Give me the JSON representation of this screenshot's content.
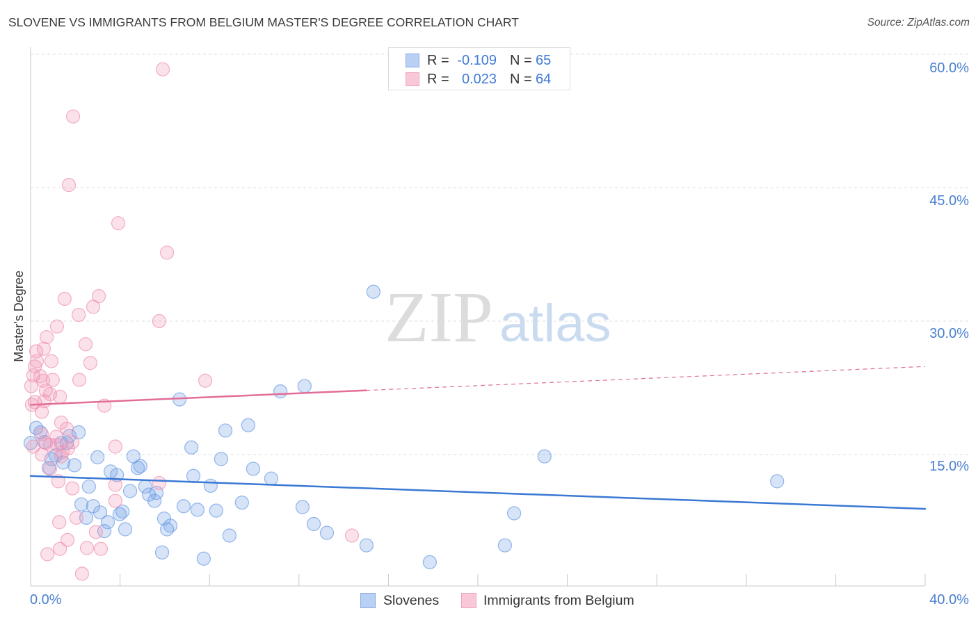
{
  "chart_data": {
    "type": "scatter",
    "title": "SLOVENE VS IMMIGRANTS FROM BELGIUM MASTER'S DEGREE CORRELATION CHART",
    "source": "Source: ZipAtlas.com",
    "xlabel": "",
    "ylabel": "Master's Degree",
    "xlim": [
      0,
      40
    ],
    "ylim": [
      0,
      61.25
    ],
    "grid": true,
    "legend_position": "bottom",
    "x_ticks": [
      0,
      4,
      8,
      12,
      16,
      20,
      24,
      28,
      32,
      36,
      40
    ],
    "x_tick_labels": [
      {
        "value": 0,
        "label": "0.0%"
      },
      {
        "value": 40,
        "label": "40.0%"
      }
    ],
    "y_ticks": [
      {
        "value": 60,
        "label": "60.0%"
      },
      {
        "value": 45,
        "label": "45.0%"
      },
      {
        "value": 30,
        "label": "30.0%"
      },
      {
        "value": 15,
        "label": "15.0%"
      }
    ],
    "series": [
      {
        "name": "Slovenes",
        "r": "-0.109",
        "n": "65",
        "color": "#6f9fe6",
        "line_color": "#3a78d4",
        "trend": {
          "x": [
            0,
            40
          ],
          "y": [
            12.6,
            8.9
          ]
        },
        "points": [
          [
            0.0,
            16.3
          ],
          [
            0.25,
            18.0
          ],
          [
            0.44,
            17.5
          ],
          [
            0.62,
            16.4
          ],
          [
            0.81,
            13.5
          ],
          [
            0.93,
            14.5
          ],
          [
            1.12,
            14.9
          ],
          [
            1.37,
            16.3
          ],
          [
            1.46,
            14.1
          ],
          [
            1.62,
            16.3
          ],
          [
            1.74,
            17.1
          ],
          [
            1.96,
            13.8
          ],
          [
            2.15,
            17.5
          ],
          [
            2.27,
            9.4
          ],
          [
            2.49,
            7.9
          ],
          [
            2.61,
            11.4
          ],
          [
            2.8,
            9.2
          ],
          [
            2.99,
            14.7
          ],
          [
            3.11,
            8.5
          ],
          [
            3.3,
            6.4
          ],
          [
            3.45,
            7.4
          ],
          [
            3.58,
            13.1
          ],
          [
            3.86,
            12.7
          ],
          [
            3.98,
            8.3
          ],
          [
            4.11,
            8.6
          ],
          [
            4.23,
            6.6
          ],
          [
            4.45,
            10.9
          ],
          [
            4.6,
            14.8
          ],
          [
            4.79,
            13.5
          ],
          [
            4.91,
            13.7
          ],
          [
            5.13,
            11.4
          ],
          [
            5.29,
            10.5
          ],
          [
            5.54,
            9.8
          ],
          [
            5.63,
            10.7
          ],
          [
            5.88,
            4.0
          ],
          [
            5.97,
            7.8
          ],
          [
            6.1,
            6.6
          ],
          [
            6.25,
            7.0
          ],
          [
            6.66,
            21.2
          ],
          [
            6.84,
            9.2
          ],
          [
            7.19,
            15.8
          ],
          [
            7.28,
            12.6
          ],
          [
            7.46,
            8.8
          ],
          [
            7.74,
            3.3
          ],
          [
            8.05,
            11.5
          ],
          [
            8.3,
            8.7
          ],
          [
            8.52,
            14.5
          ],
          [
            8.71,
            17.7
          ],
          [
            8.89,
            5.9
          ],
          [
            9.45,
            9.6
          ],
          [
            9.73,
            18.3
          ],
          [
            9.95,
            13.4
          ],
          [
            10.76,
            12.3
          ],
          [
            11.17,
            22.1
          ],
          [
            12.16,
            9.1
          ],
          [
            12.25,
            22.7
          ],
          [
            12.66,
            7.2
          ],
          [
            13.25,
            6.2
          ],
          [
            15.02,
            4.8
          ],
          [
            15.33,
            33.3
          ],
          [
            17.85,
            2.9
          ],
          [
            21.21,
            4.8
          ],
          [
            21.62,
            8.4
          ],
          [
            22.98,
            14.8
          ],
          [
            33.38,
            12.0
          ]
        ]
      },
      {
        "name": "Immigrants from Belgium",
        "r": "0.023",
        "n": "64",
        "color": "#f095b3",
        "line_color": "#e26d98",
        "trend": {
          "x": [
            0,
            40
          ],
          "y": [
            20.6,
            24.9
          ],
          "solid_until": 15
        },
        "points": [
          [
            5.91,
            58.3
          ],
          [
            1.9,
            53.0
          ],
          [
            1.71,
            45.3
          ],
          [
            3.92,
            41.0
          ],
          [
            6.1,
            37.7
          ],
          [
            3.05,
            32.8
          ],
          [
            1.52,
            32.5
          ],
          [
            2.8,
            31.6
          ],
          [
            2.15,
            30.7
          ],
          [
            5.75,
            30.0
          ],
          [
            1.18,
            29.4
          ],
          [
            0.72,
            28.2
          ],
          [
            2.46,
            27.4
          ],
          [
            0.59,
            26.9
          ],
          [
            0.25,
            26.6
          ],
          [
            0.93,
            25.5
          ],
          [
            2.67,
            25.3
          ],
          [
            0.28,
            25.5
          ],
          [
            0.19,
            24.9
          ],
          [
            0.12,
            23.9
          ],
          [
            0.44,
            23.8
          ],
          [
            0.56,
            23.3
          ],
          [
            0.99,
            23.4
          ],
          [
            2.18,
            23.4
          ],
          [
            7.81,
            23.3
          ],
          [
            0.03,
            22.7
          ],
          [
            0.68,
            22.2
          ],
          [
            0.87,
            21.8
          ],
          [
            1.31,
            21.5
          ],
          [
            0.19,
            20.9
          ],
          [
            0.62,
            21.0
          ],
          [
            3.3,
            20.5
          ],
          [
            0.06,
            20.6
          ],
          [
            0.5,
            19.8
          ],
          [
            1.37,
            18.6
          ],
          [
            1.62,
            17.9
          ],
          [
            0.5,
            17.3
          ],
          [
            1.15,
            17.0
          ],
          [
            1.87,
            16.4
          ],
          [
            0.12,
            15.9
          ],
          [
            0.68,
            16.3
          ],
          [
            0.87,
            16.1
          ],
          [
            1.18,
            16.1
          ],
          [
            1.68,
            15.7
          ],
          [
            1.43,
            15.3
          ],
          [
            0.5,
            15.0
          ],
          [
            1.37,
            14.8
          ],
          [
            3.79,
            15.9
          ],
          [
            0.87,
            13.4
          ],
          [
            1.24,
            12.0
          ],
          [
            1.87,
            11.2
          ],
          [
            3.79,
            11.6
          ],
          [
            5.75,
            11.8
          ],
          [
            3.79,
            9.8
          ],
          [
            2.05,
            7.9
          ],
          [
            1.28,
            7.4
          ],
          [
            2.92,
            6.3
          ],
          [
            1.65,
            5.4
          ],
          [
            14.37,
            5.9
          ],
          [
            2.52,
            4.5
          ],
          [
            3.14,
            4.4
          ],
          [
            1.31,
            4.4
          ],
          [
            0.75,
            3.8
          ],
          [
            2.3,
            1.6
          ]
        ]
      }
    ]
  },
  "stats_legend": {
    "r_label": "R =",
    "n_label": "N ="
  },
  "watermark": {
    "zip": "ZIP",
    "atlas": "atlas"
  }
}
